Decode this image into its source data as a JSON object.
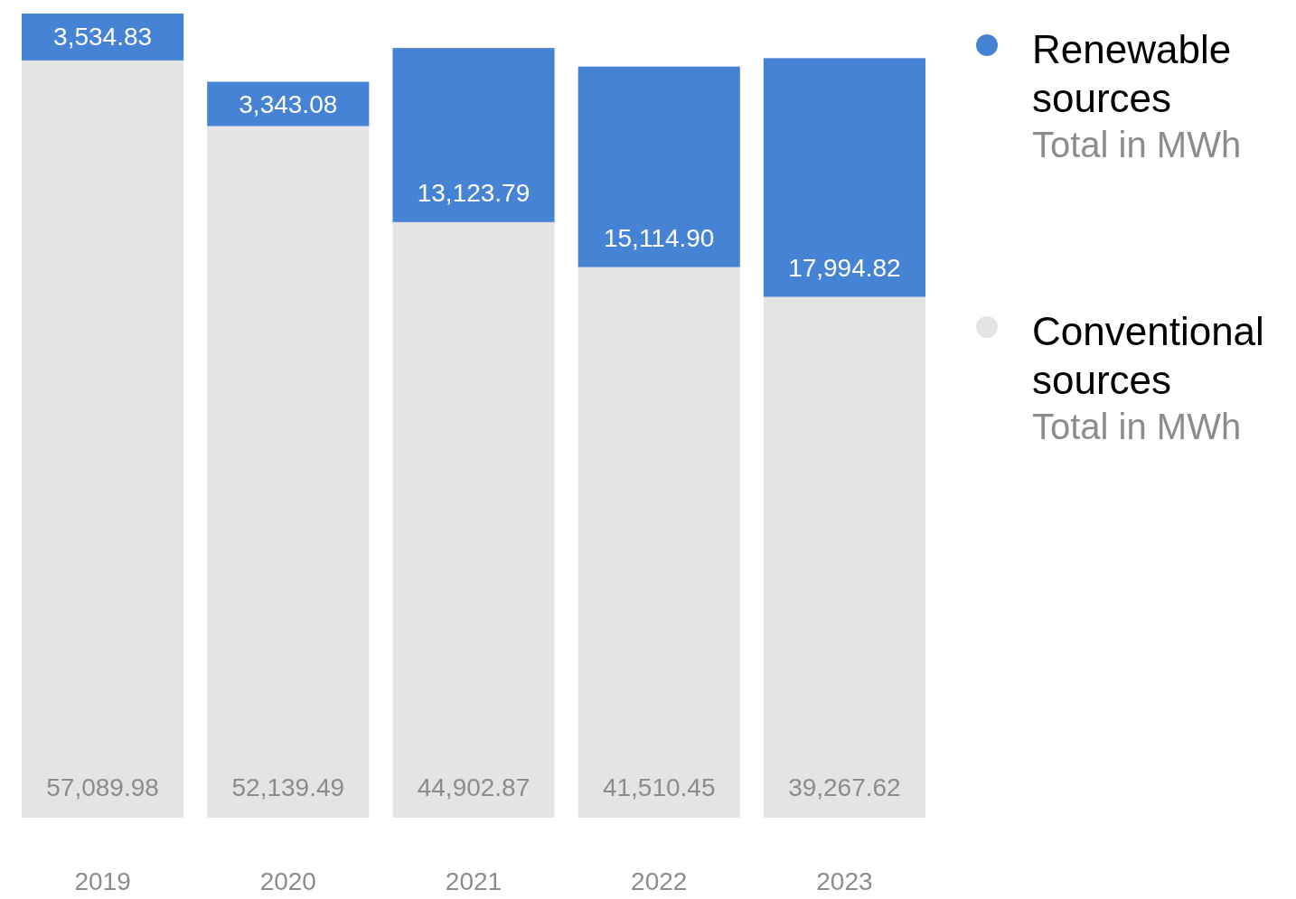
{
  "chart_data": {
    "type": "bar",
    "stacked": true,
    "legend": "top right",
    "categories": [
      "2019",
      "2020",
      "2021",
      "2022",
      "2023"
    ],
    "series": [
      {
        "name": "Conventional sources",
        "color": "#e4e4e4",
        "values": [
          57089.98,
          52139.49,
          44902.87,
          41510.45,
          39267.62
        ],
        "value_labels": [
          "57,089.98",
          "52,139.49",
          "44,902.87",
          "41,510.45",
          "39,267.62"
        ]
      },
      {
        "name": "Renewable sources",
        "color": "#4783d5",
        "values": [
          3534.83,
          3343.08,
          13123.79,
          15114.9,
          17994.82
        ],
        "value_labels": [
          "3,534.83",
          "3,343.08",
          "13,123.79",
          "15,114.90",
          "17,994.82"
        ]
      }
    ],
    "annotations": [
      "Total in MWh",
      "Total in MWh"
    ]
  }
}
